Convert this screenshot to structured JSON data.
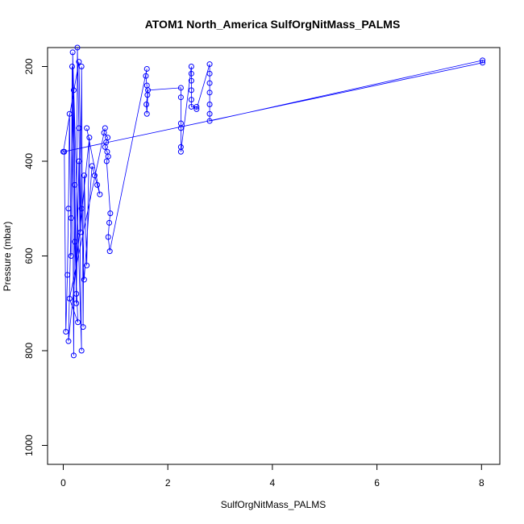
{
  "chart_data": {
    "type": "scatter",
    "title": "ATOM1 North_America SulfOrgNitMass_PALMS",
    "xlabel": "SulfOrgNitMass_PALMS",
    "ylabel": "Pressure (mbar)",
    "xlim": [
      -0.3,
      8.35
    ],
    "ylim": [
      1040,
      160
    ],
    "y_reversed": true,
    "x_ticks": [
      0,
      2,
      4,
      6,
      8
    ],
    "x_tick_labels": [
      "0",
      "2",
      "4",
      "6",
      "8"
    ],
    "y_ticks": [
      200,
      400,
      600,
      800,
      1000
    ],
    "y_tick_labels": [
      "200",
      "400",
      "600",
      "800",
      "1000"
    ],
    "grid": false,
    "legend": "none",
    "marker": "open-circle",
    "connected_with_lines": true,
    "series_color": "#0000ff",
    "series": [
      {
        "x": [
          0.02,
          0.05,
          0.08,
          0.1,
          0.12,
          0.15,
          0.17,
          0.2,
          0.22,
          0.25,
          0.27,
          0.3,
          0.33,
          0.35,
          0.38,
          0.4,
          0.45,
          0.5,
          0.1,
          0.15,
          0.2,
          0.25,
          0.3,
          0.35,
          0.18,
          0.22,
          0.28,
          0.12,
          0.8,
          0.78,
          0.85,
          0.82,
          0.8,
          0.84,
          0.86,
          0.83,
          0.9,
          0.88,
          0.86,
          0.89,
          1.6,
          1.58,
          1.6,
          1.61,
          1.59,
          1.6,
          1.62,
          2.25,
          2.25,
          2.25,
          2.25,
          2.25,
          2.25,
          2.45,
          2.45,
          2.45,
          2.45,
          2.45,
          2.45,
          2.55,
          2.55,
          2.8,
          2.8,
          2.8,
          2.8,
          2.8,
          2.8,
          2.8,
          8.02,
          8.02,
          0.0,
          0.3,
          0.35,
          0.4,
          0.55,
          0.6,
          0.65,
          0.7,
          0.45
        ],
        "y": [
          380,
          760,
          640,
          500,
          300,
          600,
          200,
          810,
          450,
          700,
          160,
          330,
          550,
          200,
          750,
          430,
          620,
          350,
          780,
          520,
          250,
          680,
          400,
          800,
          170,
          570,
          740,
          690,
          330,
          340,
          350,
          360,
          370,
          380,
          390,
          400,
          510,
          530,
          560,
          590,
          205,
          220,
          240,
          260,
          280,
          300,
          250,
          245,
          265,
          320,
          330,
          370,
          380,
          200,
          215,
          230,
          250,
          270,
          285,
          285,
          290,
          195,
          215,
          235,
          255,
          280,
          300,
          315,
          187,
          192,
          380,
          190,
          500,
          650,
          410,
          430,
          450,
          470,
          330
        ]
      }
    ]
  }
}
